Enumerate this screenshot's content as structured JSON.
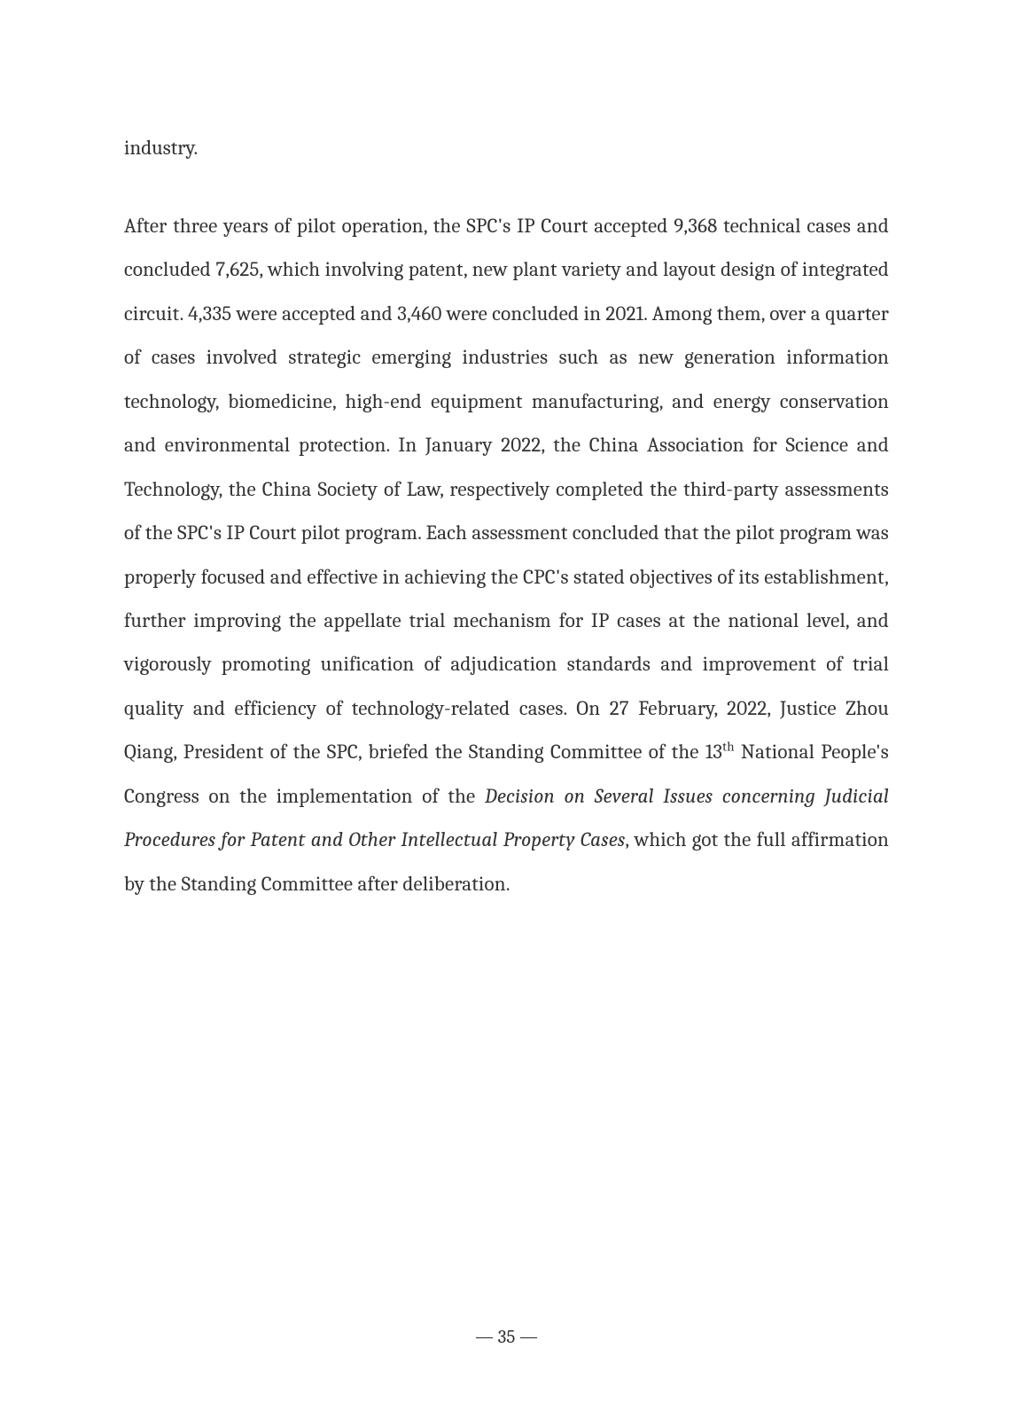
{
  "continuation": "industry.",
  "paragraph": {
    "part1": "After three years of pilot operation, the SPC's IP Court accepted 9,368 technical cases and concluded 7,625, which involving patent, new plant variety and layout design of integrated circuit. 4,335 were accepted and 3,460 were concluded in 2021. Among them, over a quarter of cases involved strategic emerging industries such as new generation information technology, biomedicine, high-end equipment manufacturing, and energy conservation and environmental protection. In January 2022, the China Association for Science and Technology, the China Society of Law, respectively completed the third-party assessments of the SPC's IP Court pilot program. Each assessment concluded that the pilot program was properly focused and effective in achieving the CPC's stated objectives of its establishment, further improving the appellate trial mechanism for IP cases at the national level, and vigorously promoting unification of adjudication standards and improvement of trial quality and efficiency of technology-related cases. On 27 February, 2022, Justice Zhou Qiang, President of the SPC, briefed the Standing Committee of the 13",
    "sup": "th",
    "part2": " National People's Congress on the implementation of the ",
    "italic": "Decision on Several Issues concerning Judicial Procedures for Patent and Other Intellectual Property Cases",
    "part3": ", which got the full affirmation by the Standing Committee after deliberation."
  },
  "pageNumber": "— 35 —"
}
